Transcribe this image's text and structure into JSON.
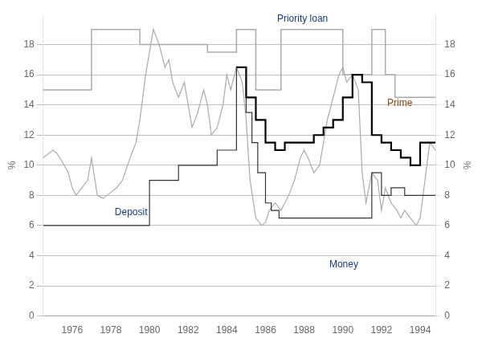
{
  "chart_data": {
    "type": "line",
    "xlim": [
      1974.5,
      1994.8
    ],
    "xticks": [
      1976,
      1978,
      1980,
      1982,
      1984,
      1986,
      1988,
      1990,
      1992,
      1994
    ],
    "ylim": [
      0,
      20
    ],
    "yticks": [
      0,
      2,
      4,
      6,
      8,
      10,
      12,
      14,
      16,
      18
    ],
    "y2lim": [
      0,
      20
    ],
    "y2ticks": [
      0,
      2,
      4,
      6,
      8,
      10,
      12,
      14,
      16,
      18
    ],
    "ylabel": "%",
    "y2label": "%",
    "grid": "y",
    "series": [
      {
        "color": "#aaaaaa",
        "x": [
          1974.5,
          1975.0,
          1975.2,
          1975.5,
          1975.8,
          1976.0,
          1976.2,
          1976.5,
          1976.8,
          1977.0,
          1977.3,
          1977.6,
          1978.0,
          1978.3,
          1978.6,
          1979.0,
          1979.3,
          1979.5,
          1979.8,
          1980.0,
          1980.2,
          1980.5,
          1980.8,
          1981.0,
          1981.2,
          1981.5,
          1981.8,
          1982.0,
          1982.2,
          1982.5,
          1982.8,
          1983.0,
          1983.2,
          1983.5,
          1983.8,
          1984.0,
          1984.2,
          1984.5,
          1984.8,
          1985.0,
          1985.2,
          1985.5,
          1985.8,
          1986.0,
          1986.2,
          1986.5,
          1986.8,
          1987.0,
          1987.2,
          1987.5,
          1987.8,
          1988.0,
          1988.2,
          1988.5,
          1988.8,
          1989.0,
          1989.2,
          1989.5,
          1989.8,
          1990.0,
          1990.2,
          1990.5,
          1990.8,
          1991.0,
          1991.2,
          1991.5,
          1991.8,
          1992.0,
          1992.2,
          1992.5,
          1992.8,
          1993.0,
          1993.2,
          1993.5,
          1993.8,
          1994.0,
          1994.2,
          1994.5,
          1994.8
        ],
        "values": [
          10.5,
          11.0,
          10.8,
          10.2,
          9.5,
          8.5,
          8.0,
          8.5,
          9.0,
          10.5,
          8.0,
          7.8,
          8.2,
          8.5,
          9.0,
          10.5,
          11.5,
          13.0,
          16.0,
          17.5,
          19.0,
          18.0,
          16.5,
          17.0,
          15.5,
          14.5,
          15.5,
          14.0,
          12.5,
          13.5,
          15.0,
          14.0,
          12.0,
          12.5,
          14.0,
          16.0,
          15.0,
          16.5,
          15.5,
          13.0,
          9.0,
          6.5,
          6.0,
          6.2,
          7.0,
          7.5,
          7.0,
          7.5,
          8.0,
          9.0,
          10.5,
          11.0,
          10.5,
          9.5,
          10.0,
          11.5,
          13.0,
          14.5,
          16.0,
          16.5,
          15.5,
          16.0,
          15.0,
          9.5,
          7.5,
          9.5,
          9.0,
          7.0,
          8.5,
          7.5,
          7.0,
          6.5,
          7.0,
          6.5,
          6.0,
          6.5,
          8.5,
          11.5,
          11.0
        ]
      },
      {
        "color": "#aaaaaa",
        "x": [
          1974.5,
          1977.0,
          1977.0,
          1979.5,
          1979.5,
          1983.0,
          1983.0,
          1984.5,
          1984.5,
          1985.5,
          1985.5,
          1986.8,
          1986.8,
          1990.0,
          1990.0,
          1991.5,
          1991.5,
          1992.2,
          1992.2,
          1992.7,
          1992.7,
          1994.8
        ],
        "values": [
          15.0,
          15.0,
          19.0,
          19.0,
          18.0,
          18.0,
          17.5,
          17.5,
          19.0,
          19.0,
          15.0,
          15.0,
          19.0,
          19.0,
          16.0,
          16.0,
          19.0,
          19.0,
          16.0,
          16.0,
          14.5,
          14.5
        ]
      },
      {
        "color": "#333333",
        "x": [
          1974.5,
          1980.0,
          1980.0,
          1981.5,
          1981.5,
          1983.5,
          1983.5,
          1984.5,
          1984.5,
          1985.0,
          1985.0,
          1985.3,
          1985.3,
          1985.6,
          1985.6,
          1986.0,
          1986.0,
          1986.3,
          1986.3,
          1986.7,
          1986.7,
          1991.5,
          1991.5,
          1992.0,
          1992.0,
          1992.5,
          1992.5,
          1993.2,
          1993.2,
          1994.8
        ],
        "values": [
          6.0,
          6.0,
          9.0,
          9.0,
          10.0,
          10.0,
          11.0,
          11.0,
          16.5,
          16.5,
          13.5,
          13.5,
          11.5,
          11.5,
          9.5,
          9.5,
          7.5,
          7.5,
          7.0,
          7.0,
          6.5,
          6.5,
          9.5,
          9.5,
          8.0,
          8.0,
          8.5,
          8.5,
          8.0,
          8.0
        ]
      },
      {
        "color": "#000000",
        "x": [
          1984.5,
          1985.0,
          1985.0,
          1985.5,
          1985.5,
          1986.0,
          1986.0,
          1986.5,
          1986.5,
          1987.0,
          1987.0,
          1988.0,
          1988.0,
          1988.5,
          1988.5,
          1989.0,
          1989.0,
          1989.5,
          1989.5,
          1990.0,
          1990.0,
          1990.5,
          1990.5,
          1991.0,
          1991.0,
          1991.5,
          1991.5,
          1992.0,
          1992.0,
          1992.5,
          1992.5,
          1993.0,
          1993.0,
          1993.5,
          1993.5,
          1994.0,
          1994.0,
          1994.8
        ],
        "values": [
          16.5,
          16.5,
          14.5,
          14.5,
          13.0,
          13.0,
          11.5,
          11.5,
          11.0,
          11.0,
          11.5,
          11.5,
          11.5,
          11.5,
          12.0,
          12.0,
          12.5,
          12.5,
          13.0,
          13.0,
          14.5,
          14.5,
          16.0,
          16.0,
          15.5,
          15.5,
          12.0,
          12.0,
          11.5,
          11.5,
          11.0,
          11.0,
          10.5,
          10.5,
          10.0,
          10.0,
          11.5,
          11.5
        ]
      }
    ],
    "annotations": [
      {
        "text": "Priority loan",
        "x": 1986.6,
        "y": 19.4,
        "color": "#1a3a8a"
      },
      {
        "text": "Deposit",
        "x": 1978.2,
        "y": 7.2,
        "color": "#1a3a8a"
      },
      {
        "text": "Prime",
        "x": 1992.3,
        "y": 13.8,
        "color": "#8b4513"
      },
      {
        "text": "Money",
        "x": 1989.3,
        "y": 3.7,
        "color": "#1a3a8a"
      }
    ]
  }
}
